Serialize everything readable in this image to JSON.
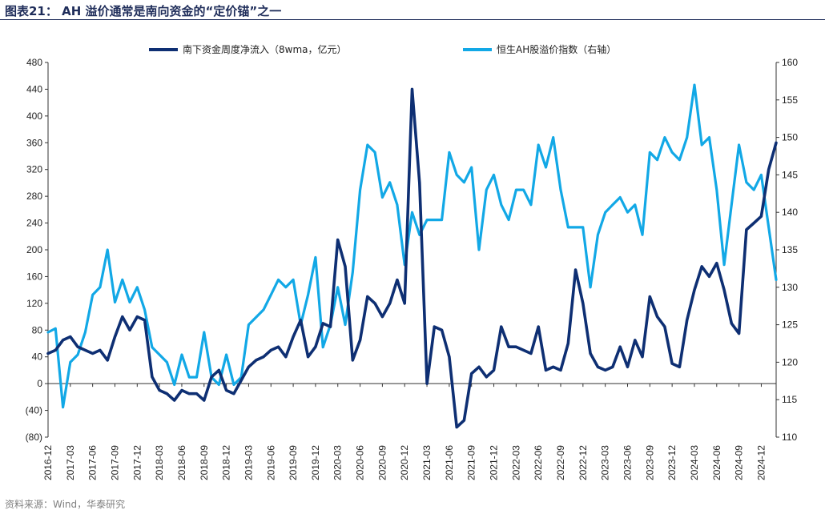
{
  "header": {
    "title": "图表21：  AH 溢价通常是南向资金的“定价锚”之一"
  },
  "footer": {
    "source": "资料来源：Wind，华泰研究"
  },
  "colors": {
    "southbound": "#0e2f73",
    "ah_premium": "#12a8e6",
    "title": "#1f2d5a"
  },
  "chart_data": {
    "type": "line",
    "title": "",
    "legend_position": "top",
    "grid": false,
    "x_tick_labels": [
      "2016-12",
      "2017-03",
      "2017-06",
      "2017-09",
      "2017-12",
      "2018-03",
      "2018-06",
      "2018-09",
      "2018-12",
      "2019-03",
      "2019-06",
      "2019-09",
      "2019-12",
      "2020-03",
      "2020-06",
      "2020-09",
      "2020-12",
      "2021-03",
      "2021-06",
      "2021-09",
      "2021-12",
      "2022-03",
      "2022-06",
      "2022-09",
      "2022-12",
      "2023-03",
      "2023-06",
      "2023-09",
      "2023-12",
      "2024-03",
      "2024-06",
      "2024-09",
      "2024-12"
    ],
    "x_range": [
      "2016-12",
      "2025-02"
    ],
    "y_left": {
      "range": [
        -80,
        480
      ],
      "tick_labels": [
        "480",
        "440",
        "400",
        "360",
        "320",
        "280",
        "240",
        "200",
        "160",
        "120",
        "80",
        "40",
        "0",
        "(40)",
        "(80)"
      ]
    },
    "y_right": {
      "range": [
        110,
        160
      ],
      "tick_labels": [
        "160",
        "155",
        "150",
        "145",
        "140",
        "135",
        "130",
        "125",
        "120",
        "115",
        "110"
      ]
    },
    "series": [
      {
        "name": "南下资金周度净流入（8wma，亿元）",
        "axis": "left",
        "x": [
          "2016-12",
          "2017-01",
          "2017-02",
          "2017-03",
          "2017-04",
          "2017-05",
          "2017-06",
          "2017-07",
          "2017-08",
          "2017-09",
          "2017-10",
          "2017-11",
          "2017-12",
          "2018-01",
          "2018-02",
          "2018-03",
          "2018-04",
          "2018-05",
          "2018-06",
          "2018-07",
          "2018-08",
          "2018-09",
          "2018-10",
          "2018-11",
          "2018-12",
          "2019-01",
          "2019-02",
          "2019-03",
          "2019-04",
          "2019-05",
          "2019-06",
          "2019-07",
          "2019-08",
          "2019-09",
          "2019-10",
          "2019-11",
          "2019-12",
          "2020-01",
          "2020-02",
          "2020-03",
          "2020-04",
          "2020-05",
          "2020-06",
          "2020-07",
          "2020-08",
          "2020-09",
          "2020-10",
          "2020-11",
          "2020-12",
          "2021-01",
          "2021-02",
          "2021-03",
          "2021-04",
          "2021-05",
          "2021-06",
          "2021-07",
          "2021-08",
          "2021-09",
          "2021-10",
          "2021-11",
          "2021-12",
          "2022-01",
          "2022-02",
          "2022-03",
          "2022-04",
          "2022-05",
          "2022-06",
          "2022-07",
          "2022-08",
          "2022-09",
          "2022-10",
          "2022-11",
          "2022-12",
          "2023-01",
          "2023-02",
          "2023-03",
          "2023-04",
          "2023-05",
          "2023-06",
          "2023-07",
          "2023-08",
          "2023-09",
          "2023-10",
          "2023-11",
          "2023-12",
          "2024-01",
          "2024-02",
          "2024-03",
          "2024-04",
          "2024-05",
          "2024-06",
          "2024-07",
          "2024-08",
          "2024-09",
          "2024-10",
          "2024-11",
          "2024-12",
          "2025-01",
          "2025-02"
        ],
        "values": [
          45,
          50,
          65,
          70,
          55,
          50,
          45,
          50,
          35,
          70,
          100,
          80,
          100,
          95,
          10,
          -10,
          -15,
          -25,
          -10,
          -15,
          -15,
          -25,
          10,
          20,
          -10,
          -15,
          5,
          25,
          35,
          40,
          50,
          55,
          40,
          70,
          95,
          40,
          55,
          90,
          85,
          215,
          175,
          35,
          65,
          130,
          120,
          100,
          120,
          155,
          120,
          440,
          300,
          0,
          85,
          80,
          40,
          -65,
          -55,
          15,
          25,
          10,
          20,
          85,
          55,
          55,
          50,
          45,
          85,
          20,
          25,
          20,
          60,
          170,
          120,
          45,
          25,
          20,
          25,
          55,
          25,
          65,
          40,
          130,
          100,
          85,
          30,
          25,
          95,
          140,
          175,
          160,
          180,
          140,
          90,
          75,
          230,
          240,
          250,
          320,
          360
        ]
      },
      {
        "name": "恒生AH股溢价指数（右轴）",
        "axis": "right",
        "x": [
          "2016-12",
          "2017-01",
          "2017-02",
          "2017-03",
          "2017-04",
          "2017-05",
          "2017-06",
          "2017-07",
          "2017-08",
          "2017-09",
          "2017-10",
          "2017-11",
          "2017-12",
          "2018-01",
          "2018-02",
          "2018-03",
          "2018-04",
          "2018-05",
          "2018-06",
          "2018-07",
          "2018-08",
          "2018-09",
          "2018-10",
          "2018-11",
          "2018-12",
          "2019-01",
          "2019-02",
          "2019-03",
          "2019-04",
          "2019-05",
          "2019-06",
          "2019-07",
          "2019-08",
          "2019-09",
          "2019-10",
          "2019-11",
          "2019-12",
          "2020-01",
          "2020-02",
          "2020-03",
          "2020-04",
          "2020-05",
          "2020-06",
          "2020-07",
          "2020-08",
          "2020-09",
          "2020-10",
          "2020-11",
          "2020-12",
          "2021-01",
          "2021-02",
          "2021-03",
          "2021-04",
          "2021-05",
          "2021-06",
          "2021-07",
          "2021-08",
          "2021-09",
          "2021-10",
          "2021-11",
          "2021-12",
          "2022-01",
          "2022-02",
          "2022-03",
          "2022-04",
          "2022-05",
          "2022-06",
          "2022-07",
          "2022-08",
          "2022-09",
          "2022-10",
          "2022-11",
          "2022-12",
          "2023-01",
          "2023-02",
          "2023-03",
          "2023-04",
          "2023-05",
          "2023-06",
          "2023-07",
          "2023-08",
          "2023-09",
          "2023-10",
          "2023-11",
          "2023-12",
          "2024-01",
          "2024-02",
          "2024-03",
          "2024-04",
          "2024-05",
          "2024-06",
          "2024-07",
          "2024-08",
          "2024-09",
          "2024-10",
          "2024-11",
          "2024-12",
          "2025-01",
          "2025-02"
        ],
        "values": [
          124,
          124.5,
          114,
          120,
          121,
          124,
          129,
          130,
          135,
          128,
          131,
          128,
          130,
          127,
          122,
          121,
          120,
          117,
          121,
          118,
          118,
          124,
          118,
          117,
          121,
          117,
          118,
          125,
          126,
          127,
          129,
          131,
          130,
          131,
          125,
          129,
          134,
          122,
          125,
          130,
          125,
          132,
          143,
          149,
          148,
          142,
          144,
          141,
          133,
          140,
          137,
          139,
          139,
          139,
          148,
          145,
          144,
          146,
          135,
          143,
          145,
          141,
          139,
          143,
          143,
          141,
          149,
          146,
          150,
          143,
          138,
          138,
          138,
          130,
          137,
          140,
          141,
          142,
          140,
          141,
          137,
          148,
          147,
          150,
          148,
          147,
          150,
          157,
          149,
          150,
          143,
          133,
          141,
          149,
          144,
          143,
          145,
          138,
          131
        ]
      }
    ]
  }
}
